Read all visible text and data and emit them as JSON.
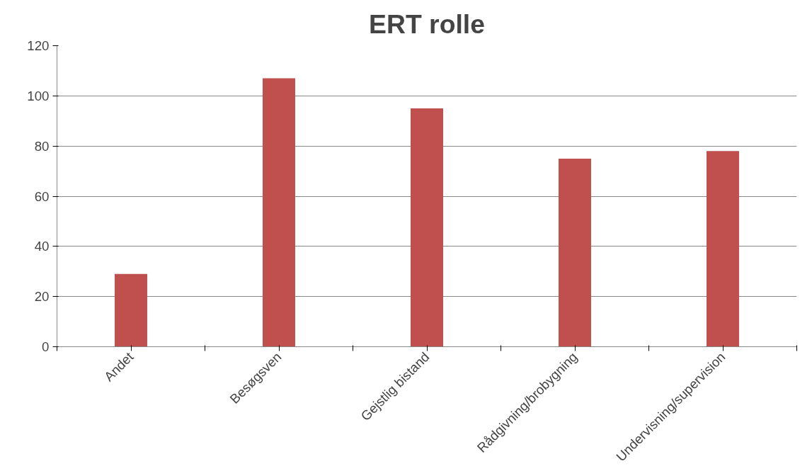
{
  "chart_data": {
    "type": "bar",
    "title": "ERT rolle",
    "categories": [
      "Andet",
      "Besøgsven",
      "Gejstlig bistand",
      "Rådgivning/brobygning",
      "Undervisning/supervision"
    ],
    "values": [
      29,
      107,
      95,
      75,
      78
    ],
    "color": "#c0504d",
    "ylim": [
      0,
      120
    ],
    "yticks": [
      0,
      20,
      40,
      60,
      80,
      100,
      120
    ],
    "grid": "y"
  }
}
